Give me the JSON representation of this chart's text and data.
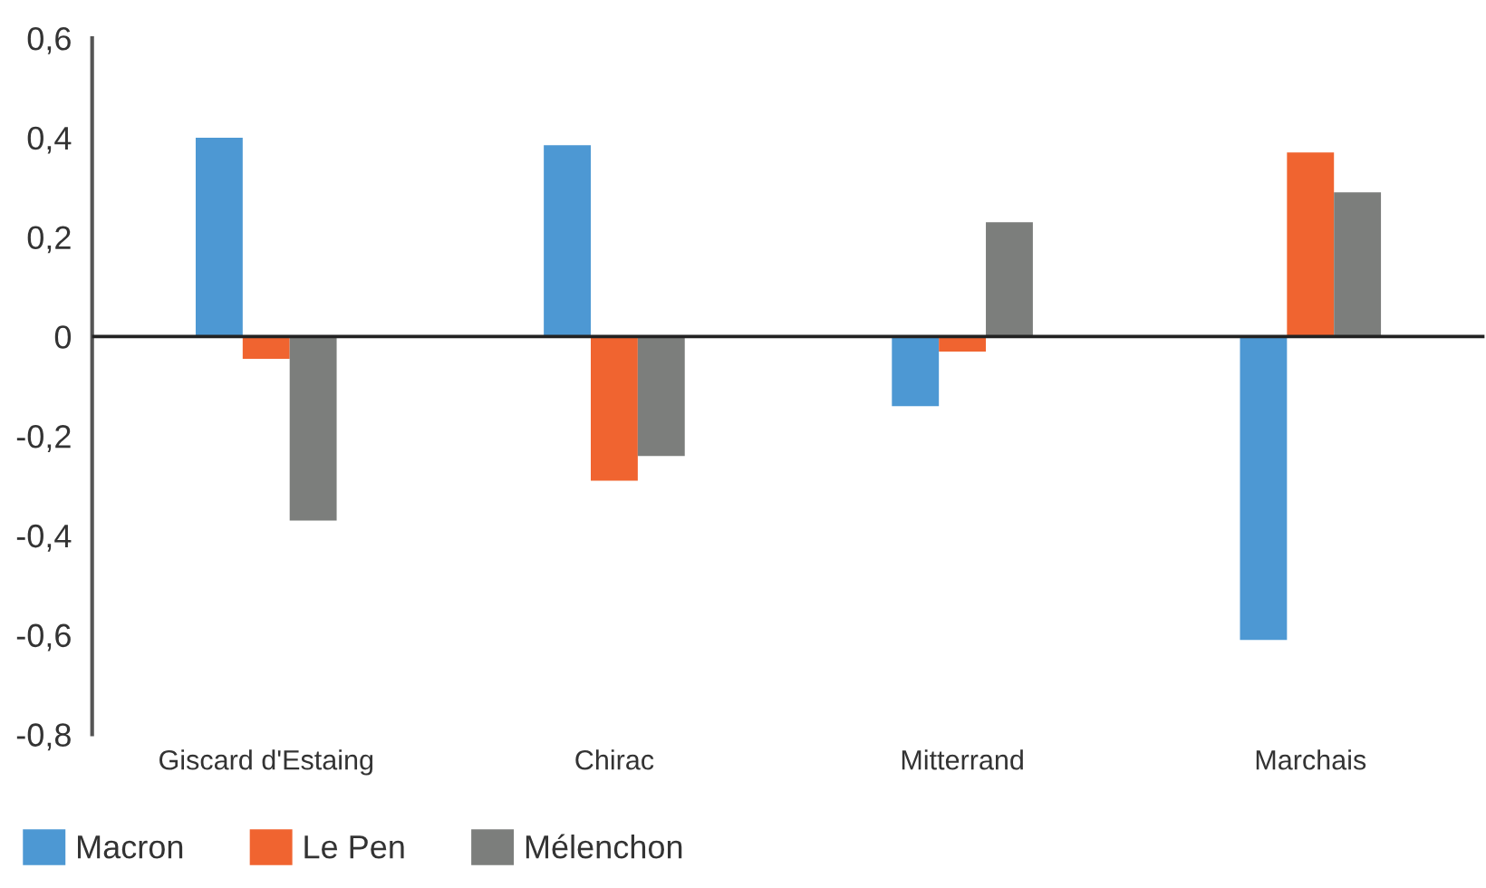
{
  "chart_data": {
    "type": "bar",
    "categories": [
      "Giscard d'Estaing",
      "Chirac",
      "Mitterrand",
      "Marchais"
    ],
    "series": [
      {
        "name": "Macron",
        "color": "#4d98d3",
        "values": [
          0.4,
          0.385,
          -0.14,
          -0.61
        ]
      },
      {
        "name": "Le Pen",
        "color": "#f06430",
        "values": [
          -0.045,
          -0.29,
          -0.03,
          0.37
        ]
      },
      {
        "name": "Mélenchon",
        "color": "#7c7e7c",
        "values": [
          -0.37,
          -0.24,
          0.23,
          0.29
        ]
      }
    ],
    "ylim": [
      -0.8,
      0.6
    ],
    "yticks": [
      {
        "value": -0.8,
        "label": "-0,8"
      },
      {
        "value": -0.6,
        "label": "-0,6"
      },
      {
        "value": -0.4,
        "label": "-0,4"
      },
      {
        "value": -0.2,
        "label": "-0,2"
      },
      {
        "value": 0,
        "label": "0"
      },
      {
        "value": 0.2,
        "label": "0,2"
      },
      {
        "value": 0.4,
        "label": "0,4"
      },
      {
        "value": 0.6,
        "label": "0,6"
      }
    ],
    "ref_lines": [
      {
        "axis": "y",
        "value": 0,
        "color": "#222222"
      }
    ],
    "legend": "bottom left"
  }
}
